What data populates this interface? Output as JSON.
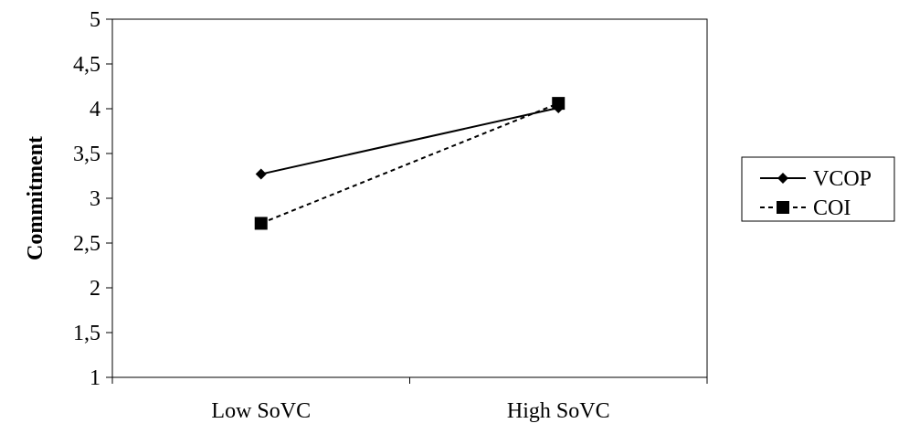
{
  "chart_data": {
    "type": "line",
    "title": "",
    "xlabel": "",
    "ylabel": "Commitment",
    "categories": [
      "Low SoVC",
      "High SoVC"
    ],
    "ylim": [
      1,
      5
    ],
    "yticks": [
      "1",
      "1,5",
      "2",
      "2,5",
      "3",
      "3,5",
      "4",
      "4,5",
      "5"
    ],
    "ytick_values": [
      1,
      1.5,
      2,
      2.5,
      3,
      3.5,
      4,
      4.5,
      5
    ],
    "grid": false,
    "legend_position": "right",
    "series": [
      {
        "name": "VCOP",
        "values": [
          3.27,
          4.01
        ],
        "line_style": "solid",
        "marker": "diamond",
        "color": "#000000"
      },
      {
        "name": "COI",
        "values": [
          2.72,
          4.06
        ],
        "line_style": "dashed",
        "marker": "square",
        "color": "#000000"
      }
    ]
  }
}
